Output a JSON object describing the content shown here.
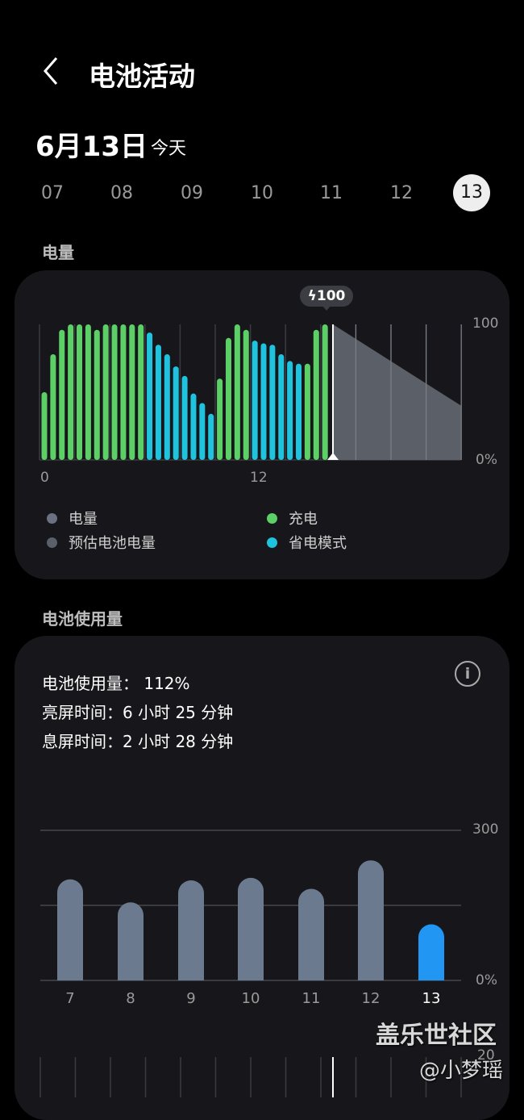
{
  "header": {
    "title": "电池活动",
    "back_icon": "chevron-left-icon"
  },
  "date": {
    "label": "6月13日",
    "today": "今天"
  },
  "days": [
    {
      "label": "07"
    },
    {
      "label": "08"
    },
    {
      "label": "09"
    },
    {
      "label": "10"
    },
    {
      "label": "11"
    },
    {
      "label": "12"
    },
    {
      "label": "13",
      "selected": true
    }
  ],
  "level_section": {
    "title": "电量"
  },
  "usage_section": {
    "title": "电池使用量"
  },
  "colors": {
    "charging": "#5ccf66",
    "power_saving": "#1fc3de",
    "level": "#6a7281",
    "estimate": "#5a5f68",
    "usage_bar": "#6b7a8e",
    "usage_today": "#2196f3"
  },
  "chart_data": [
    {
      "type": "bar",
      "x_ticks": [
        "0",
        "12"
      ],
      "y_ticks": [
        "100",
        "0%"
      ],
      "ylim": [
        0,
        100
      ],
      "x_unit": "hour of day, half-hour bars",
      "tooltip": {
        "icon": "lightning-icon",
        "value": "100"
      },
      "values": [
        50,
        78,
        96,
        100,
        100,
        100,
        96,
        100,
        100,
        100,
        100,
        100,
        94,
        85,
        78,
        69,
        62,
        49,
        42,
        34,
        60,
        90,
        100,
        96,
        88,
        86,
        85,
        78,
        73,
        71,
        71,
        96,
        100
      ],
      "modes": [
        "c",
        "c",
        "c",
        "c",
        "c",
        "c",
        "c",
        "c",
        "c",
        "c",
        "c",
        "c",
        "s",
        "s",
        "s",
        "s",
        "s",
        "s",
        "s",
        "s",
        "c",
        "c",
        "c",
        "c",
        "s",
        "s",
        "s",
        "s",
        "s",
        "s",
        "c",
        "c",
        "c"
      ],
      "estimate": {
        "start": 100,
        "end": 40
      },
      "legend": [
        {
          "label": "电量",
          "color": "#6a7281"
        },
        {
          "label": "充电",
          "color": "#5ccf66"
        },
        {
          "label": "预估电池电量",
          "color": "#5a5f68"
        },
        {
          "label": "省电模式",
          "color": "#1fc3de"
        }
      ]
    },
    {
      "type": "bar",
      "categories": [
        "7",
        "8",
        "9",
        "10",
        "11",
        "12",
        "13"
      ],
      "values": [
        202,
        156,
        200,
        205,
        183,
        240,
        112
      ],
      "y_ticks": [
        "300",
        "0%"
      ],
      "ylim": [
        0,
        300
      ],
      "grid": true
    }
  ],
  "usage": {
    "total": "电池使用量： 112%",
    "screen_on": "亮屏时间：6 小时 25 分钟",
    "screen_off": "息屏时间：2 小时 28 分钟",
    "info_icon": "info-icon"
  },
  "partial_chart": {
    "tick": "20"
  },
  "watermark": {
    "line1": "盖乐世社区",
    "line2": "@小梦瑶"
  }
}
